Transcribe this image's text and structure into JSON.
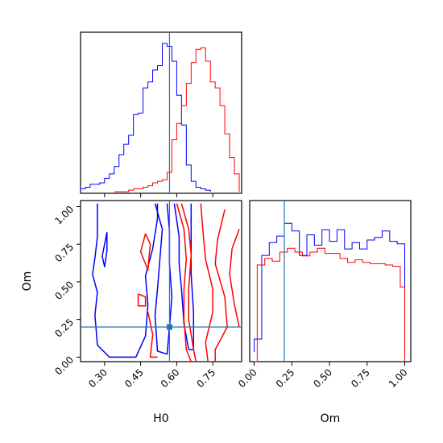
{
  "chart_data": {
    "type": "corner",
    "parameters": [
      "H0",
      "Om"
    ],
    "truth_color": "#1f77b4",
    "truth": {
      "H0": 0.57,
      "Om": 0.2
    },
    "series": [
      {
        "color": "#0000ff"
      },
      {
        "color": "#ff0000"
      }
    ],
    "panels": [
      {
        "id": "hist-H0",
        "type": "step-histogram",
        "xlim": [
          0.2,
          0.87
        ],
        "show_x_ticks": false,
        "series": [
          {
            "color": "#0000ff",
            "bins": [
              [
                0.2,
                0.02
              ],
              [
                0.22,
                0.03
              ],
              [
                0.24,
                0.05
              ],
              [
                0.26,
                0.05
              ],
              [
                0.28,
                0.06
              ],
              [
                0.3,
                0.09
              ],
              [
                0.32,
                0.12
              ],
              [
                0.34,
                0.17
              ],
              [
                0.36,
                0.25
              ],
              [
                0.38,
                0.32
              ],
              [
                0.4,
                0.38
              ],
              [
                0.42,
                0.52
              ],
              [
                0.44,
                0.53
              ],
              [
                0.46,
                0.7
              ],
              [
                0.48,
                0.74
              ],
              [
                0.5,
                0.82
              ],
              [
                0.52,
                0.85
              ],
              [
                0.54,
                1.0
              ],
              [
                0.56,
                0.98
              ],
              [
                0.58,
                0.88
              ],
              [
                0.6,
                0.65
              ],
              [
                0.62,
                0.45
              ],
              [
                0.64,
                0.18
              ],
              [
                0.66,
                0.07
              ],
              [
                0.68,
                0.03
              ],
              [
                0.7,
                0.02
              ],
              [
                0.72,
                0.01
              ],
              [
                0.74,
                0.0
              ]
            ]
          },
          {
            "color": "#ff0000",
            "bins": [
              [
                0.34,
                0.0
              ],
              [
                0.4,
                0.01
              ],
              [
                0.42,
                0.02
              ],
              [
                0.46,
                0.03
              ],
              [
                0.48,
                0.04
              ],
              [
                0.5,
                0.06
              ],
              [
                0.52,
                0.07
              ],
              [
                0.54,
                0.08
              ],
              [
                0.56,
                0.13
              ],
              [
                0.58,
                0.35
              ],
              [
                0.6,
                0.46
              ],
              [
                0.62,
                0.58
              ],
              [
                0.64,
                0.73
              ],
              [
                0.66,
                0.87
              ],
              [
                0.68,
                0.96
              ],
              [
                0.7,
                0.97
              ],
              [
                0.72,
                0.88
              ],
              [
                0.74,
                0.74
              ],
              [
                0.76,
                0.7
              ],
              [
                0.78,
                0.58
              ],
              [
                0.8,
                0.39
              ],
              [
                0.82,
                0.23
              ],
              [
                0.84,
                0.12
              ],
              [
                0.86,
                0.0
              ]
            ]
          }
        ]
      },
      {
        "id": "contour-H0-Om",
        "type": "contour",
        "xlabel": "H0",
        "ylabel": "Om",
        "xlim": [
          0.2,
          0.87
        ],
        "ylim": [
          -0.03,
          1.04
        ],
        "xticks": [
          0.3,
          0.45,
          0.6,
          0.75
        ],
        "xtick_labels": [
          "0.30",
          "0.45",
          "0.60",
          "0.75"
        ],
        "yticks": [
          0.0,
          0.25,
          0.5,
          0.75,
          1.0
        ],
        "ytick_labels": [
          "0.00",
          "0.25",
          "0.50",
          "0.75",
          "1.00"
        ],
        "series": [
          {
            "color": "#0000ff",
            "levels": [
              [
                [
                  0.27,
                  1.02
                ],
                [
                  0.27,
                  0.8
                ],
                [
                  0.26,
                  0.66
                ],
                [
                  0.25,
                  0.55
                ],
                [
                  0.27,
                  0.43
                ],
                [
                  0.26,
                  0.28
                ],
                [
                  0.27,
                  0.08
                ],
                [
                  0.32,
                  0.0
                ],
                [
                  0.43,
                  0.0
                ],
                [
                  0.47,
                  0.14
                ],
                [
                  0.48,
                  0.35
                ],
                [
                  0.47,
                  0.54
                ],
                [
                  0.5,
                  0.72
                ],
                [
                  0.52,
                  0.92
                ],
                [
                  0.52,
                  1.02
                ]
              ],
              [
                [
                  0.31,
                  0.83
                ],
                [
                  0.29,
                  0.67
                ],
                [
                  0.3,
                  0.6
                ],
                [
                  0.31,
                  0.71
                ],
                [
                  0.31,
                  0.83
                ]
              ],
              [
                [
                  0.51,
                  1.02
                ],
                [
                  0.54,
                  0.85
                ],
                [
                  0.53,
                  0.65
                ],
                [
                  0.52,
                  0.45
                ],
                [
                  0.51,
                  0.28
                ],
                [
                  0.52,
                  0.04
                ],
                [
                  0.56,
                  0.02
                ],
                [
                  0.57,
                  0.2
                ],
                [
                  0.58,
                  0.4
                ],
                [
                  0.57,
                  0.62
                ],
                [
                  0.57,
                  0.84
                ],
                [
                  0.56,
                  1.02
                ]
              ],
              [
                [
                  0.59,
                  1.02
                ],
                [
                  0.61,
                  0.8
                ],
                [
                  0.61,
                  0.62
                ],
                [
                  0.62,
                  0.45
                ],
                [
                  0.63,
                  0.22
                ],
                [
                  0.65,
                  0.05
                ],
                [
                  0.67,
                  0.05
                ],
                [
                  0.67,
                  0.3
                ],
                [
                  0.66,
                  0.55
                ],
                [
                  0.66,
                  0.78
                ],
                [
                  0.66,
                  1.02
                ]
              ]
            ]
          },
          {
            "color": "#ff0000",
            "levels": [
              [
                [
                  0.6,
                  1.02
                ],
                [
                  0.63,
                  0.85
                ],
                [
                  0.64,
                  0.65
                ],
                [
                  0.63,
                  0.45
                ],
                [
                  0.63,
                  0.25
                ],
                [
                  0.64,
                  0.05
                ],
                [
                  0.66,
                  -0.03
                ]
              ],
              [
                [
                  0.62,
                  1.02
                ],
                [
                  0.65,
                  0.85
                ],
                [
                  0.66,
                  0.68
                ],
                [
                  0.65,
                  0.45
                ],
                [
                  0.65,
                  0.25
                ],
                [
                  0.67,
                  0.05
                ],
                [
                  0.68,
                  -0.03
                ]
              ],
              [
                [
                  0.7,
                  1.02
                ],
                [
                  0.71,
                  0.82
                ],
                [
                  0.72,
                  0.65
                ],
                [
                  0.75,
                  0.45
                ],
                [
                  0.75,
                  0.3
                ],
                [
                  0.72,
                  0.1
                ],
                [
                  0.73,
                  -0.03
                ]
              ],
              [
                [
                  0.8,
                  0.98
                ],
                [
                  0.77,
                  0.78
                ],
                [
                  0.76,
                  0.62
                ],
                [
                  0.8,
                  0.4
                ],
                [
                  0.81,
                  0.2
                ],
                [
                  0.76,
                  0.05
                ],
                [
                  0.76,
                  -0.03
                ]
              ],
              [
                [
                  0.86,
                  0.85
                ],
                [
                  0.83,
                  0.72
                ],
                [
                  0.82,
                  0.55
                ],
                [
                  0.84,
                  0.35
                ],
                [
                  0.86,
                  0.2
                ]
              ],
              [
                [
                  0.47,
                  0.82
                ],
                [
                  0.45,
                  0.7
                ],
                [
                  0.48,
                  0.58
                ],
                [
                  0.49,
                  0.75
                ],
                [
                  0.47,
                  0.82
                ]
              ],
              [
                [
                  0.44,
                  0.42
                ],
                [
                  0.47,
                  0.4
                ],
                [
                  0.47,
                  0.34
                ],
                [
                  0.44,
                  0.34
                ],
                [
                  0.44,
                  0.42
                ]
              ],
              [
                [
                  0.48,
                  0.3
                ],
                [
                  0.5,
                  0.15
                ],
                [
                  0.49,
                  0.0
                ],
                [
                  0.52,
                  0.0
                ]
              ]
            ]
          }
        ]
      },
      {
        "id": "hist-Om",
        "type": "step-histogram",
        "xlabel": "Om",
        "xlim": [
          -0.03,
          1.04
        ],
        "xticks": [
          0.0,
          0.25,
          0.5,
          0.75,
          1.0
        ],
        "xtick_labels": [
          "0.00",
          "0.25",
          "0.50",
          "0.75",
          "1.00"
        ],
        "series": [
          {
            "color": "#0000ff",
            "bins": [
              [
                0.0,
                0.1
              ],
              [
                0.05,
                0.75
              ],
              [
                0.1,
                0.85
              ],
              [
                0.15,
                0.9
              ],
              [
                0.2,
                1.0
              ],
              [
                0.25,
                0.94
              ],
              [
                0.3,
                0.75
              ],
              [
                0.35,
                0.91
              ],
              [
                0.4,
                0.83
              ],
              [
                0.45,
                0.95
              ],
              [
                0.5,
                0.86
              ],
              [
                0.55,
                0.95
              ],
              [
                0.6,
                0.8
              ],
              [
                0.65,
                0.85
              ],
              [
                0.7,
                0.8
              ],
              [
                0.75,
                0.87
              ],
              [
                0.8,
                0.89
              ],
              [
                0.85,
                0.94
              ],
              [
                0.9,
                0.86
              ],
              [
                0.95,
                0.84
              ],
              [
                1.0,
                0.58
              ]
            ]
          },
          {
            "color": "#ff0000",
            "bins": [
              [
                0.0,
                0.0
              ],
              [
                0.02,
                0.75
              ],
              [
                0.07,
                0.8
              ],
              [
                0.12,
                0.78
              ],
              [
                0.17,
                0.85
              ],
              [
                0.22,
                0.88
              ],
              [
                0.27,
                0.85
              ],
              [
                0.32,
                0.82
              ],
              [
                0.37,
                0.85
              ],
              [
                0.42,
                0.88
              ],
              [
                0.47,
                0.84
              ],
              [
                0.52,
                0.84
              ],
              [
                0.57,
                0.8
              ],
              [
                0.62,
                0.77
              ],
              [
                0.67,
                0.79
              ],
              [
                0.72,
                0.77
              ],
              [
                0.77,
                0.76
              ],
              [
                0.82,
                0.76
              ],
              [
                0.87,
                0.75
              ],
              [
                0.92,
                0.74
              ],
              [
                0.97,
                0.58
              ],
              [
                1.0,
                0.0
              ]
            ]
          }
        ]
      }
    ]
  }
}
